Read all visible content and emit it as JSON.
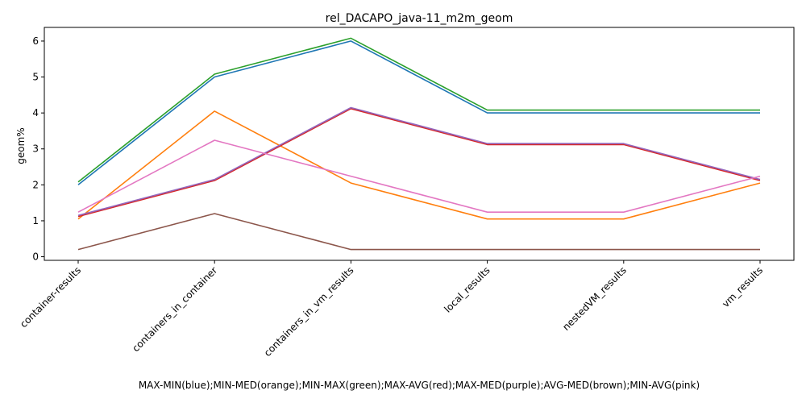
{
  "chart_data": {
    "type": "line",
    "title": "rel_DACAPO_java-11_m2m_geom",
    "xlabel": "MAX-MIN(blue);MIN-MED(orange);MIN-MAX(green);MAX-AVG(red);MAX-MED(purple);AVG-MED(brown);MIN-AVG(pink)",
    "ylabel": "geom%",
    "categories": [
      "container-results",
      "containers_in_container",
      "containers_in_vm_results",
      "local_results",
      "nestedVM_results",
      "vm_results"
    ],
    "ylim": [
      -0.1,
      6.38
    ],
    "yticks": [
      0,
      1,
      2,
      3,
      4,
      5,
      6
    ],
    "grid": false,
    "series": [
      {
        "color": "#1f77b4",
        "values": [
          2.0,
          5.0,
          6.0,
          4.0,
          4.0,
          4.0
        ]
      },
      {
        "color": "#ff7f0e",
        "values": [
          1.05,
          4.05,
          2.05,
          1.05,
          1.05,
          2.05
        ]
      },
      {
        "color": "#2ca02c",
        "values": [
          2.08,
          5.08,
          6.08,
          4.08,
          4.08,
          4.08
        ]
      },
      {
        "color": "#d62728",
        "values": [
          1.12,
          2.12,
          4.12,
          3.12,
          3.12,
          2.12
        ]
      },
      {
        "color": "#9467bd",
        "values": [
          1.15,
          2.15,
          4.15,
          3.15,
          3.15,
          2.15
        ]
      },
      {
        "color": "#8c564b",
        "values": [
          0.2,
          1.2,
          0.2,
          0.2,
          0.2,
          0.2
        ]
      },
      {
        "color": "#e377c2",
        "values": [
          1.24,
          3.24,
          2.24,
          1.24,
          1.24,
          2.24
        ]
      }
    ]
  }
}
